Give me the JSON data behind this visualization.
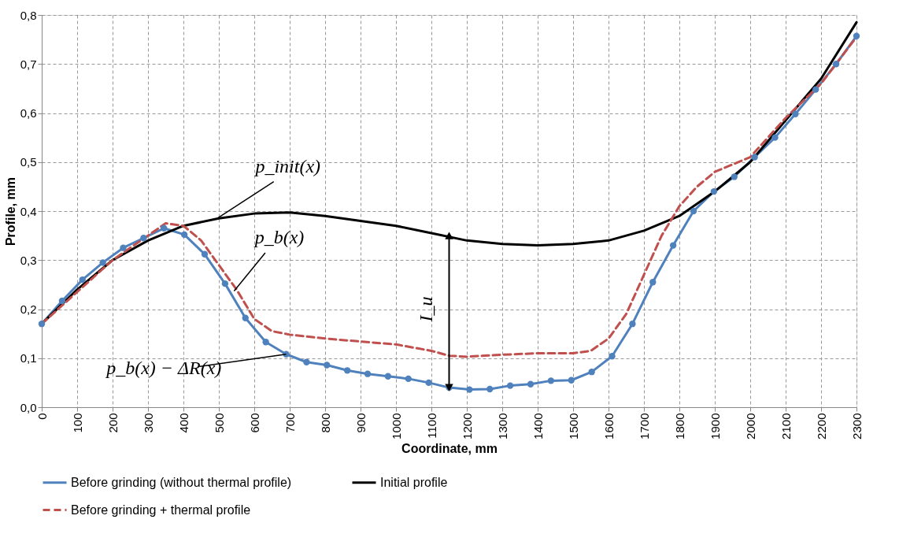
{
  "chart_data": {
    "type": "line",
    "xlabel": "Coordinate, mm",
    "ylabel": "Profile, mm",
    "xlim": [
      0,
      2300
    ],
    "xticks": [
      0,
      100,
      200,
      300,
      400,
      500,
      600,
      700,
      800,
      900,
      1000,
      1100,
      1200,
      1300,
      1400,
      1500,
      1600,
      1700,
      1800,
      1900,
      2000,
      2100,
      2200,
      2300
    ],
    "ylim": [
      0,
      0.8
    ],
    "yticks": [
      {
        "value": 0,
        "label": "0,0"
      },
      {
        "value": 0.1,
        "label": "0,1"
      },
      {
        "value": 0.2,
        "label": "0,2"
      },
      {
        "value": 0.3,
        "label": "0,3"
      },
      {
        "value": 0.4,
        "label": "0,4"
      },
      {
        "value": 0.5,
        "label": "0,5"
      },
      {
        "value": 0.6,
        "label": "0,6"
      },
      {
        "value": 0.7,
        "label": "0,7"
      },
      {
        "value": 0.8,
        "label": "0,8"
      }
    ],
    "grid": true,
    "legend": "bottom",
    "series": [
      {
        "name": "Before grinding (without thermal profile)",
        "color": "#4f81bd",
        "line_style": "solid",
        "marker": "circle",
        "x": [
          0,
          57.5,
          115,
          172.5,
          230,
          287.5,
          345,
          402.5,
          460,
          517.5,
          575,
          632.5,
          690,
          747.5,
          805,
          862.5,
          920,
          977.5,
          1035,
          1092.5,
          1150,
          1207.5,
          1265,
          1322.5,
          1380,
          1437.5,
          1495,
          1552.5,
          1610,
          1667.5,
          1725,
          1782.5,
          1840,
          1897.5,
          1955,
          2012.5,
          2070,
          2127.5,
          2185,
          2242.5,
          2300
        ],
        "values": [
          0.17,
          0.217,
          0.26,
          0.295,
          0.325,
          0.345,
          0.365,
          0.352,
          0.312,
          0.252,
          0.182,
          0.133,
          0.108,
          0.092,
          0.086,
          0.075,
          0.068,
          0.063,
          0.058,
          0.05,
          0.04,
          0.036,
          0.037,
          0.044,
          0.047,
          0.054,
          0.055,
          0.072,
          0.104,
          0.17,
          0.255,
          0.33,
          0.4,
          0.44,
          0.47,
          0.51,
          0.55,
          0.598,
          0.648,
          0.7,
          0.757
        ]
      },
      {
        "name": "Initial profile",
        "color": "#000000",
        "line_style": "solid",
        "marker": "none",
        "x": [
          0,
          100,
          200,
          300,
          400,
          500,
          600,
          700,
          800,
          900,
          1000,
          1100,
          1200,
          1300,
          1400,
          1500,
          1600,
          1700,
          1800,
          1900,
          2000,
          2100,
          2200,
          2300
        ],
        "values": [
          0.17,
          0.24,
          0.3,
          0.34,
          0.37,
          0.385,
          0.395,
          0.397,
          0.39,
          0.38,
          0.37,
          0.355,
          0.34,
          0.333,
          0.33,
          0.333,
          0.34,
          0.36,
          0.39,
          0.44,
          0.5,
          0.585,
          0.67,
          0.785
        ]
      },
      {
        "name": "Before grinding + thermal profile",
        "color": "#c0504d",
        "line_style": "dashed",
        "marker": "none",
        "x": [
          0,
          200,
          350,
          400,
          450,
          500,
          550,
          600,
          650,
          700,
          800,
          1000,
          1100,
          1150,
          1200,
          1300,
          1400,
          1500,
          1550,
          1600,
          1650,
          1700,
          1750,
          1800,
          1850,
          1900,
          2000,
          2100,
          2200,
          2300
        ],
        "values": [
          0.17,
          0.3,
          0.375,
          0.37,
          0.34,
          0.29,
          0.24,
          0.18,
          0.155,
          0.148,
          0.14,
          0.128,
          0.115,
          0.105,
          0.103,
          0.107,
          0.11,
          0.11,
          0.115,
          0.14,
          0.19,
          0.27,
          0.35,
          0.41,
          0.45,
          0.48,
          0.51,
          0.59,
          0.66,
          0.755
        ]
      },
      {
        "color": "#000000",
        "line_style": "solid",
        "marker": "triangle",
        "x": [
          1150,
          1150
        ],
        "values": [
          0.04,
          0.35
        ]
      }
    ],
    "annotations": [
      {
        "text": "p_init(x)",
        "x": 495,
        "y": 0.385
      },
      {
        "text": "p_b(x)",
        "x": 543,
        "y": 0.237
      },
      {
        "text": "p_b(x) − ΔR(x)",
        "x": 690,
        "y": 0.108
      },
      {
        "text": "I_u",
        "x": 1150,
        "y": 0.2
      }
    ]
  }
}
